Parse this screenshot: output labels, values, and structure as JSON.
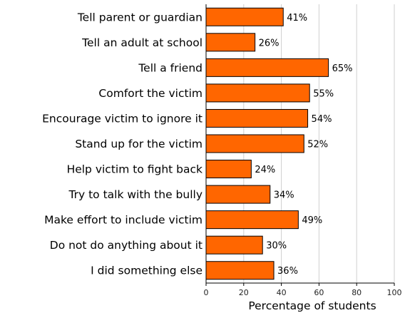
{
  "chart_data": {
    "type": "bar",
    "orientation": "horizontal",
    "categories": [
      "Tell parent or guardian",
      "Tell an adult at school",
      "Tell a friend",
      "Comfort the victim",
      "Encourage victim to ignore it",
      "Stand up for the victim",
      "Help victim to fight back",
      "Try to talk with the bully",
      "Make effort to include victim",
      "Do not do anything about it",
      "I did something else"
    ],
    "values": [
      41,
      26,
      65,
      55,
      54,
      52,
      24,
      34,
      49,
      30,
      36
    ],
    "value_labels": [
      "41%",
      "26%",
      "65%",
      "55%",
      "54%",
      "52%",
      "24%",
      "34%",
      "49%",
      "30%",
      "36%"
    ],
    "xlabel": "Percentage of students",
    "ylabel": "",
    "title": "",
    "xlim": [
      0,
      100
    ],
    "xticks": [
      "0",
      "20",
      "40",
      "60",
      "80",
      "100"
    ],
    "grid": "vertical",
    "bar_color": "#ff6600"
  }
}
